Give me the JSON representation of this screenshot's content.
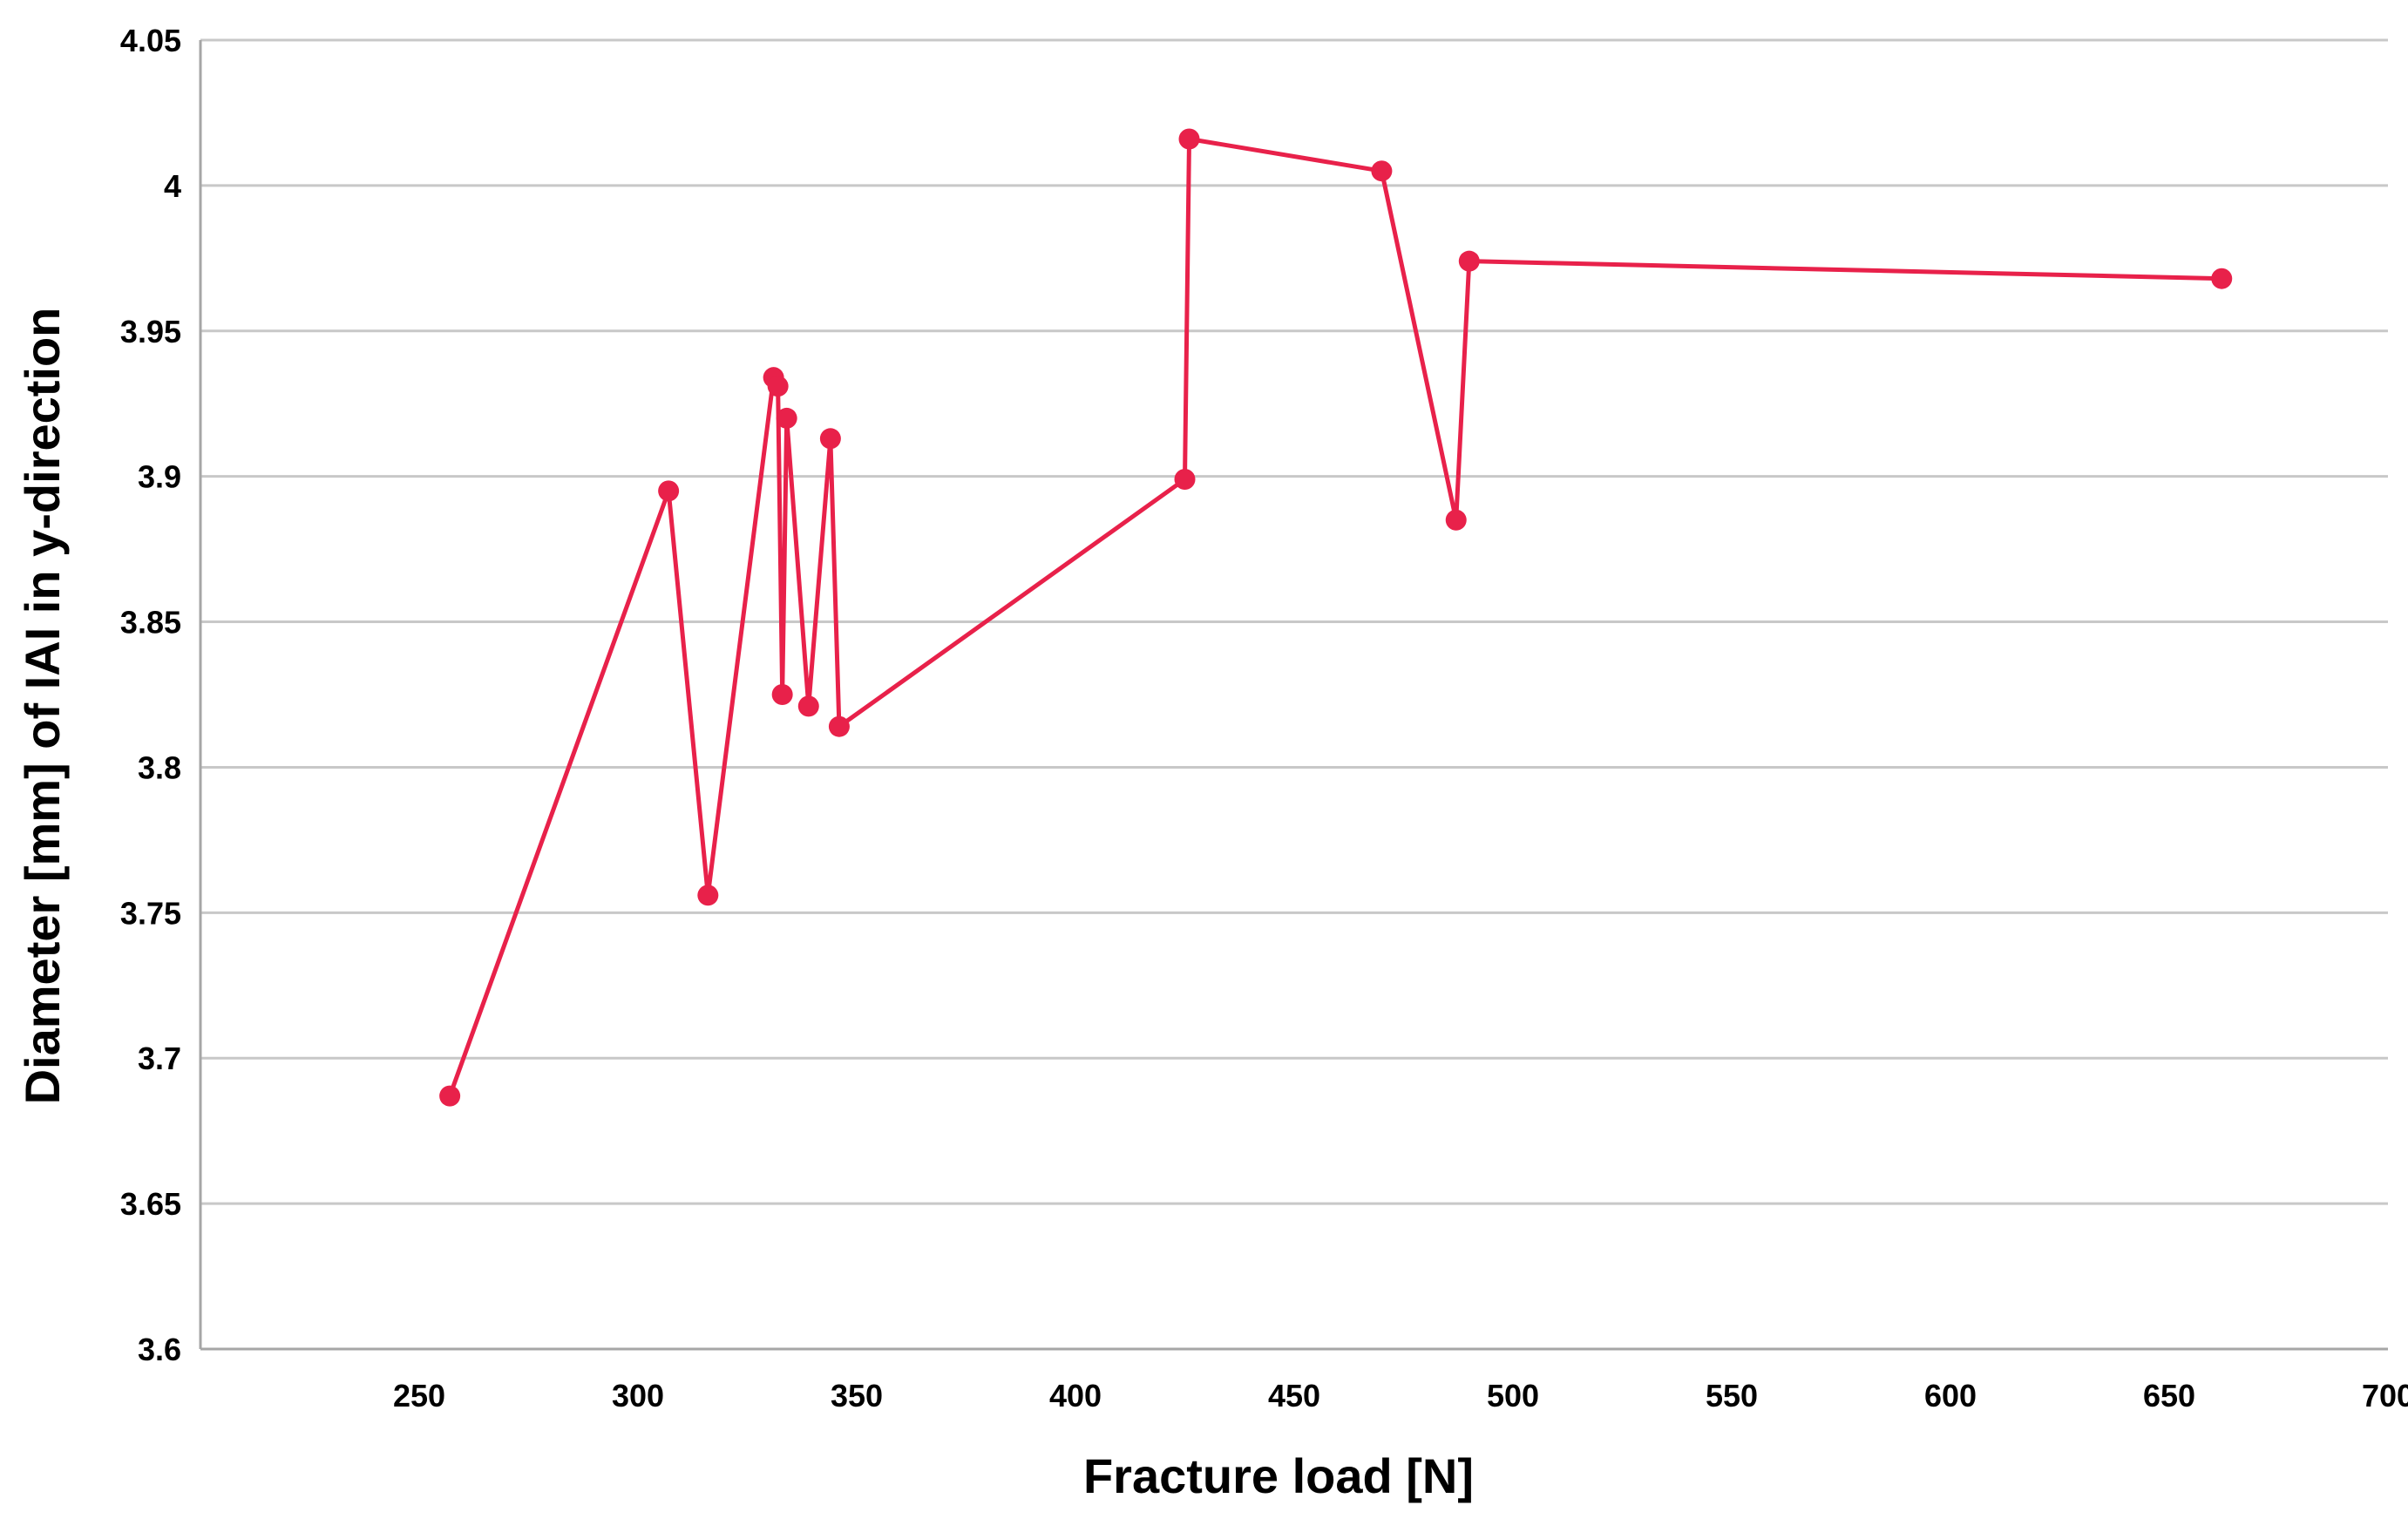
{
  "chart_data": {
    "type": "line",
    "xlabel": "Fracture load [N]",
    "ylabel": "Diameter [mm] of IAI in y-direction",
    "xlim": [
      200,
      700
    ],
    "ylim": [
      3.6,
      4.05
    ],
    "x_ticks": [
      250,
      300,
      350,
      400,
      450,
      500,
      550,
      600,
      650,
      700
    ],
    "y_ticks": [
      3.6,
      3.65,
      3.7,
      3.75,
      3.8,
      3.85,
      3.9,
      3.95,
      4,
      4.05
    ],
    "y_tick_labels": [
      "3.6",
      "3.65",
      "3.7",
      "3.75",
      "3.8",
      "3.85",
      "3.9",
      "3.95",
      "4",
      "4.05"
    ],
    "grid": "horizontal",
    "legend": "none",
    "color": "#e8214a",
    "series": [
      {
        "points": [
          [
            257,
            3.687
          ],
          [
            307,
            3.895
          ],
          [
            316,
            3.756
          ],
          [
            331,
            3.934
          ],
          [
            332,
            3.931
          ],
          [
            333,
            3.825
          ],
          [
            334,
            3.92
          ],
          [
            339,
            3.821
          ],
          [
            344,
            3.913
          ],
          [
            346,
            3.814
          ],
          [
            425,
            3.899
          ],
          [
            426,
            4.016
          ],
          [
            470,
            4.005
          ],
          [
            487,
            3.885
          ],
          [
            490,
            3.974
          ],
          [
            662,
            3.968
          ]
        ]
      }
    ]
  }
}
